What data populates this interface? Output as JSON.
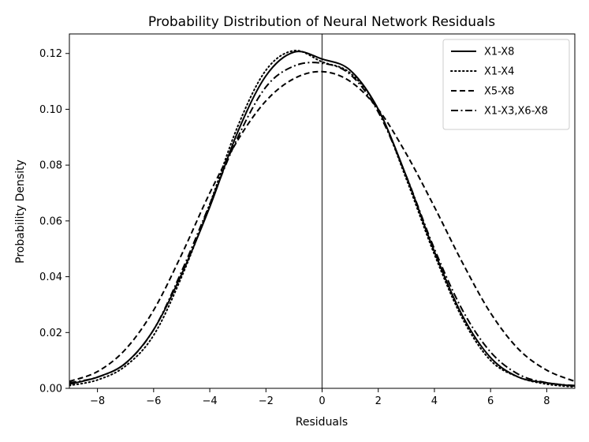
{
  "chart_data": {
    "type": "line",
    "title": "Probability Distribution of Neural Network Residuals",
    "xlabel": "Residuals",
    "ylabel": "Probability Density",
    "xlim": [
      -9,
      9
    ],
    "ylim": [
      0,
      0.127
    ],
    "x_ticks": [
      -8,
      -6,
      -4,
      -2,
      0,
      2,
      4,
      6,
      8
    ],
    "x_tick_labels": [
      "−8",
      "−6",
      "−4",
      "−2",
      "0",
      "2",
      "4",
      "6",
      "8"
    ],
    "y_ticks": [
      0,
      0.02,
      0.04,
      0.06,
      0.08,
      0.1,
      0.12
    ],
    "y_tick_labels": [
      "0.00",
      "0.02",
      "0.04",
      "0.06",
      "0.08",
      "0.10",
      "0.12"
    ],
    "vline_x": 0,
    "grid": false,
    "legend_position": "top-right",
    "x": [
      -9,
      -8,
      -7,
      -6,
      -5,
      -4,
      -3,
      -2,
      -1,
      0,
      1,
      2,
      3,
      4,
      5,
      6,
      7,
      8,
      9
    ],
    "series": [
      {
        "name": "X1-X8",
        "dash": "solid",
        "values": [
          0.0015,
          0.004,
          0.009,
          0.021,
          0.041,
          0.065,
          0.092,
          0.112,
          0.1205,
          0.118,
          0.114,
          0.1,
          0.076,
          0.049,
          0.026,
          0.011,
          0.004,
          0.002,
          0.0008
        ]
      },
      {
        "name": "X1-X4",
        "dash": "dotted",
        "values": [
          0.001,
          0.003,
          0.008,
          0.019,
          0.04,
          0.066,
          0.094,
          0.114,
          0.121,
          0.117,
          0.113,
          0.1,
          0.075,
          0.048,
          0.025,
          0.01,
          0.004,
          0.0015,
          0.0005
        ]
      },
      {
        "name": "X5-X8",
        "dash": "dashed",
        "values": [
          0.0025,
          0.006,
          0.014,
          0.028,
          0.048,
          0.07,
          0.089,
          0.103,
          0.111,
          0.1135,
          0.11,
          0.1,
          0.084,
          0.065,
          0.045,
          0.027,
          0.014,
          0.0065,
          0.0025
        ]
      },
      {
        "name": "X1-X3,X6-X8",
        "dash": "dashdot",
        "values": [
          0.002,
          0.004,
          0.009,
          0.021,
          0.042,
          0.066,
          0.09,
          0.108,
          0.1155,
          0.1165,
          0.1125,
          0.099,
          0.076,
          0.05,
          0.028,
          0.013,
          0.005,
          0.002,
          0.001
        ]
      }
    ]
  }
}
